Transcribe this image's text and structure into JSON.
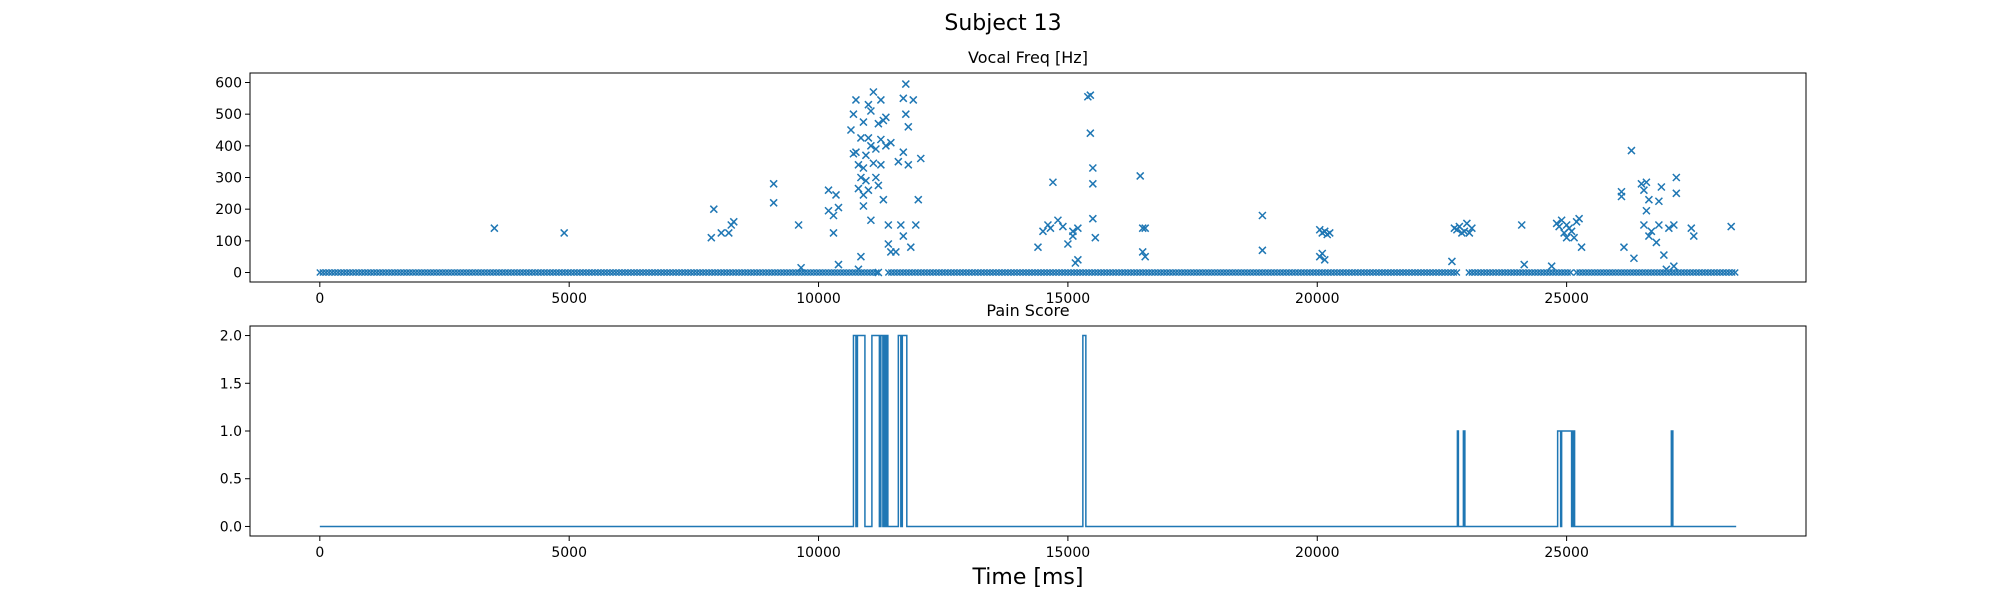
{
  "figure": {
    "suptitle": "Subject 13",
    "xlabel": "Time [ms]"
  },
  "colors": {
    "series": "#1f77b4"
  },
  "chart_data": [
    {
      "type": "scatter",
      "title": "Vocal Freq [Hz]",
      "xlim": [
        -1400,
        29800
      ],
      "ylim": [
        -30,
        630
      ],
      "xticks": [
        0,
        5000,
        10000,
        15000,
        20000,
        25000
      ],
      "yticks": [
        0,
        100,
        200,
        300,
        400,
        500,
        600
      ],
      "marker": "x",
      "baseline": {
        "y": 0,
        "x_start": 0,
        "x_end": 28400,
        "gaps": [
          [
            11200,
            11400
          ],
          [
            22850,
            23000
          ],
          [
            25100,
            25200
          ]
        ]
      },
      "points": [
        [
          3500,
          140
        ],
        [
          4900,
          125
        ],
        [
          7850,
          110
        ],
        [
          7900,
          200
        ],
        [
          8050,
          125
        ],
        [
          8200,
          125
        ],
        [
          8250,
          150
        ],
        [
          8300,
          160
        ],
        [
          9100,
          280
        ],
        [
          9100,
          220
        ],
        [
          9600,
          150
        ],
        [
          9650,
          15
        ],
        [
          10200,
          260
        ],
        [
          10200,
          195
        ],
        [
          10300,
          180
        ],
        [
          10300,
          125
        ],
        [
          10350,
          245
        ],
        [
          10400,
          205
        ],
        [
          10400,
          25
        ],
        [
          10650,
          450
        ],
        [
          10700,
          500
        ],
        [
          10700,
          375
        ],
        [
          10750,
          545
        ],
        [
          10750,
          380
        ],
        [
          10800,
          265
        ],
        [
          10800,
          340
        ],
        [
          10800,
          10
        ],
        [
          10850,
          425
        ],
        [
          10850,
          300
        ],
        [
          10850,
          50
        ],
        [
          10900,
          475
        ],
        [
          10900,
          330
        ],
        [
          10900,
          210
        ],
        [
          10900,
          245
        ],
        [
          10950,
          370
        ],
        [
          10950,
          290
        ],
        [
          11000,
          530
        ],
        [
          11000,
          425
        ],
        [
          11000,
          260
        ],
        [
          11050,
          510
        ],
        [
          11050,
          400
        ],
        [
          11050,
          165
        ],
        [
          11100,
          570
        ],
        [
          11100,
          345
        ],
        [
          11150,
          390
        ],
        [
          11150,
          300
        ],
        [
          11200,
          470
        ],
        [
          11200,
          275
        ],
        [
          11200,
          0
        ],
        [
          11250,
          545
        ],
        [
          11250,
          420
        ],
        [
          11250,
          340
        ],
        [
          11300,
          480
        ],
        [
          11300,
          230
        ],
        [
          11350,
          490
        ],
        [
          11350,
          400
        ],
        [
          11400,
          150
        ],
        [
          11400,
          90
        ],
        [
          11450,
          410
        ],
        [
          11450,
          65
        ],
        [
          11550,
          65
        ],
        [
          11600,
          350
        ],
        [
          11650,
          150
        ],
        [
          11700,
          550
        ],
        [
          11700,
          380
        ],
        [
          11700,
          115
        ],
        [
          11750,
          595
        ],
        [
          11750,
          500
        ],
        [
          11800,
          460
        ],
        [
          11800,
          340
        ],
        [
          11850,
          80
        ],
        [
          11900,
          545
        ],
        [
          11950,
          150
        ],
        [
          12000,
          230
        ],
        [
          12050,
          360
        ],
        [
          14400,
          80
        ],
        [
          14500,
          130
        ],
        [
          14600,
          150
        ],
        [
          14650,
          140
        ],
        [
          14700,
          285
        ],
        [
          14800,
          165
        ],
        [
          14900,
          145
        ],
        [
          15000,
          90
        ],
        [
          15100,
          130
        ],
        [
          15100,
          115
        ],
        [
          15200,
          140
        ],
        [
          15150,
          30
        ],
        [
          15200,
          40
        ],
        [
          15400,
          555
        ],
        [
          15450,
          560
        ],
        [
          15450,
          440
        ],
        [
          15500,
          330
        ],
        [
          15500,
          280
        ],
        [
          15500,
          170
        ],
        [
          15550,
          110
        ],
        [
          16450,
          305
        ],
        [
          16500,
          140
        ],
        [
          16550,
          140
        ],
        [
          16500,
          65
        ],
        [
          16550,
          50
        ],
        [
          18900,
          180
        ],
        [
          18900,
          70
        ],
        [
          20050,
          135
        ],
        [
          20100,
          125
        ],
        [
          20150,
          130
        ],
        [
          20200,
          120
        ],
        [
          20250,
          125
        ],
        [
          20050,
          50
        ],
        [
          20100,
          60
        ],
        [
          20150,
          40
        ],
        [
          22700,
          35
        ],
        [
          22750,
          140
        ],
        [
          22800,
          135
        ],
        [
          22850,
          145
        ],
        [
          22900,
          125
        ],
        [
          22950,
          130
        ],
        [
          23000,
          155
        ],
        [
          23050,
          125
        ],
        [
          23100,
          140
        ],
        [
          24100,
          150
        ],
        [
          24150,
          25
        ],
        [
          24700,
          20
        ],
        [
          24800,
          155
        ],
        [
          24850,
          145
        ],
        [
          24900,
          165
        ],
        [
          24950,
          125
        ],
        [
          25000,
          150
        ],
        [
          25050,
          140
        ],
        [
          25100,
          130
        ],
        [
          25200,
          160
        ],
        [
          25250,
          170
        ],
        [
          25300,
          80
        ],
        [
          25000,
          110
        ],
        [
          25150,
          110
        ],
        [
          26100,
          255
        ],
        [
          26100,
          240
        ],
        [
          26150,
          80
        ],
        [
          26300,
          385
        ],
        [
          26350,
          45
        ],
        [
          26500,
          280
        ],
        [
          26550,
          150
        ],
        [
          26550,
          260
        ],
        [
          26600,
          285
        ],
        [
          26600,
          195
        ],
        [
          26650,
          230
        ],
        [
          26700,
          130
        ],
        [
          26650,
          115
        ],
        [
          26800,
          95
        ],
        [
          26850,
          150
        ],
        [
          26900,
          270
        ],
        [
          26850,
          225
        ],
        [
          26950,
          55
        ],
        [
          27000,
          10
        ],
        [
          27050,
          140
        ],
        [
          27150,
          150
        ],
        [
          27200,
          300
        ],
        [
          27200,
          250
        ],
        [
          27150,
          20
        ],
        [
          27500,
          140
        ],
        [
          27550,
          115
        ],
        [
          28300,
          145
        ]
      ]
    },
    {
      "type": "line",
      "title": "Pain Score",
      "xlim": [
        -1400,
        29800
      ],
      "ylim": [
        -0.1,
        2.1
      ],
      "xticks": [
        0,
        5000,
        10000,
        15000,
        20000,
        25000
      ],
      "yticks": [
        0.0,
        0.5,
        1.0,
        1.5,
        2.0
      ],
      "ytick_format": 1,
      "points": [
        [
          0,
          0
        ],
        [
          10700,
          0
        ],
        [
          10700,
          2
        ],
        [
          10750,
          2
        ],
        [
          10750,
          0
        ],
        [
          10780,
          0
        ],
        [
          10780,
          2
        ],
        [
          10930,
          2
        ],
        [
          10930,
          0
        ],
        [
          11070,
          0
        ],
        [
          11070,
          2
        ],
        [
          11220,
          2
        ],
        [
          11220,
          0
        ],
        [
          11250,
          0
        ],
        [
          11250,
          2
        ],
        [
          11290,
          2
        ],
        [
          11290,
          0
        ],
        [
          11320,
          0
        ],
        [
          11320,
          2
        ],
        [
          11350,
          2
        ],
        [
          11350,
          0
        ],
        [
          11360,
          0
        ],
        [
          11360,
          2
        ],
        [
          11390,
          2
        ],
        [
          11390,
          0
        ],
        [
          11600,
          0
        ],
        [
          11600,
          2
        ],
        [
          11650,
          2
        ],
        [
          11650,
          0
        ],
        [
          11680,
          0
        ],
        [
          11680,
          2
        ],
        [
          11770,
          2
        ],
        [
          11770,
          0
        ],
        [
          15300,
          0
        ],
        [
          15300,
          2
        ],
        [
          15360,
          2
        ],
        [
          15360,
          0
        ],
        [
          22810,
          0
        ],
        [
          22810,
          1
        ],
        [
          22830,
          1
        ],
        [
          22830,
          0
        ],
        [
          22930,
          0
        ],
        [
          22930,
          1
        ],
        [
          22960,
          1
        ],
        [
          22960,
          0
        ],
        [
          24820,
          0
        ],
        [
          24820,
          1
        ],
        [
          24880,
          1
        ],
        [
          24880,
          0
        ],
        [
          24900,
          0
        ],
        [
          24900,
          1
        ],
        [
          25100,
          1
        ],
        [
          25100,
          0
        ],
        [
          25130,
          0
        ],
        [
          25130,
          1
        ],
        [
          25160,
          1
        ],
        [
          25160,
          0
        ],
        [
          27100,
          0
        ],
        [
          27100,
          1
        ],
        [
          27130,
          1
        ],
        [
          27130,
          0
        ],
        [
          28400,
          0
        ]
      ]
    }
  ]
}
